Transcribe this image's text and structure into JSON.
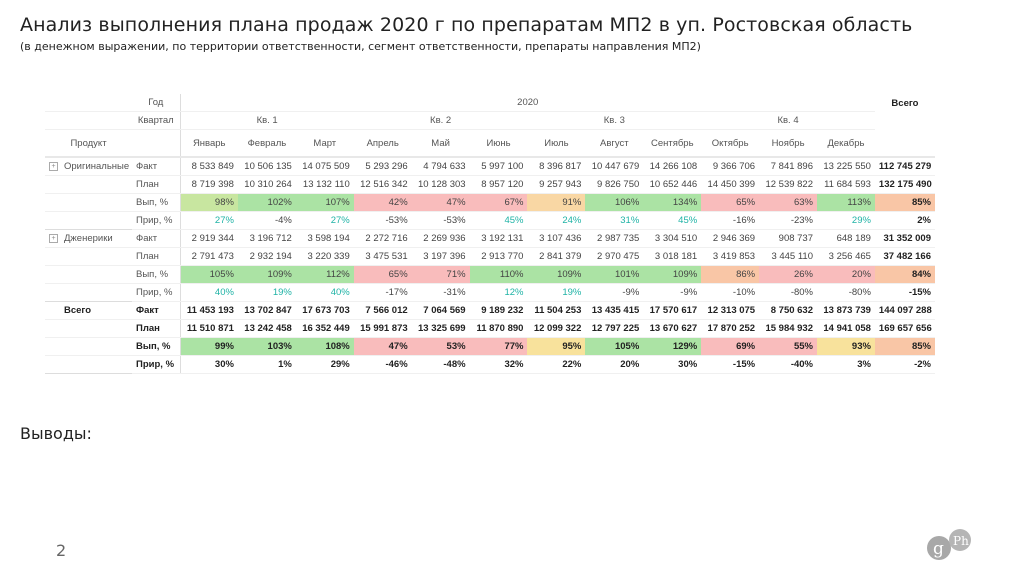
{
  "title": "Анализ выполнения плана продаж  2020 г по препаратам МП2 в уп. Ростовская область",
  "subtitle": "(в денежном выражении, по территории ответственности, сегмент ответственности, препараты направления МП2)",
  "conclusions_label": "Выводы:",
  "page_number": "2",
  "logo_text": "gPh",
  "colors": {
    "green": "#abe3a4",
    "light_green": "#c8e6a0",
    "red": "#f9bcbc",
    "peach": "#f9c6a6",
    "orange": "#f9d7a4",
    "yellow": "#f8e29c",
    "positive_text": "#1fb3a6"
  },
  "table": {
    "year_label": "Год",
    "quarter_label": "Квартал",
    "product_label": "Продукт",
    "year": "2020",
    "total_label": "Всего",
    "quarters": [
      "Кв. 1",
      "Кв. 2",
      "Кв. 3",
      "Кв. 4"
    ],
    "months": [
      "Январь",
      "Февраль",
      "Март",
      "Апрель",
      "Май",
      "Июнь",
      "Июль",
      "Август",
      "Сентябрь",
      "Октябрь",
      "Ноябрь",
      "Декабрь"
    ],
    "groups": [
      {
        "name": "Оригинальные",
        "expandable": true,
        "rows": [
          {
            "metric": "Факт",
            "values": [
              "8 533 849",
              "10 506 135",
              "14 075 509",
              "5 293 296",
              "4 794 633",
              "5 997 100",
              "8 396 817",
              "10 447 679",
              "14 266 108",
              "9 366 706",
              "7 841 896",
              "13 225 550"
            ],
            "total": "112 745 279"
          },
          {
            "metric": "План",
            "values": [
              "8 719 398",
              "10 310 264",
              "13 132 110",
              "12 516 342",
              "10 128 303",
              "8 957 120",
              "9 257 943",
              "9 826 750",
              "10 652 446",
              "14 450 399",
              "12 539 822",
              "11 684 593"
            ],
            "total": "132 175 490"
          },
          {
            "metric": "Вып, %",
            "values": [
              "98%",
              "102%",
              "107%",
              "42%",
              "47%",
              "67%",
              "91%",
              "106%",
              "134%",
              "65%",
              "63%",
              "113%"
            ],
            "total": "85%"
          },
          {
            "metric": "Прир, %",
            "values": [
              "27%",
              "-4%",
              "27%",
              "-53%",
              "-53%",
              "45%",
              "24%",
              "31%",
              "45%",
              "-16%",
              "-23%",
              "29%"
            ],
            "total": "2%"
          }
        ]
      },
      {
        "name": "Дженерики",
        "expandable": true,
        "rows": [
          {
            "metric": "Факт",
            "values": [
              "2 919 344",
              "3 196 712",
              "3 598 194",
              "2 272 716",
              "2 269 936",
              "3 192 131",
              "3 107 436",
              "2 987 735",
              "3 304 510",
              "2 946 369",
              "908 737",
              "648 189"
            ],
            "total": "31 352 009"
          },
          {
            "metric": "План",
            "values": [
              "2 791 473",
              "2 932 194",
              "3 220 339",
              "3 475 531",
              "3 197 396",
              "2 913 770",
              "2 841 379",
              "2 970 475",
              "3 018 181",
              "3 419 853",
              "3 445 110",
              "3 256 465"
            ],
            "total": "37 482 166"
          },
          {
            "metric": "Вып, %",
            "values": [
              "105%",
              "109%",
              "112%",
              "65%",
              "71%",
              "110%",
              "109%",
              "101%",
              "109%",
              "86%",
              "26%",
              "20%"
            ],
            "total": "84%"
          },
          {
            "metric": "Прир, %",
            "values": [
              "40%",
              "19%",
              "40%",
              "-17%",
              "-31%",
              "12%",
              "19%",
              "-9%",
              "-9%",
              "-10%",
              "-80%",
              "-80%"
            ],
            "total": "-15%"
          }
        ]
      },
      {
        "name": "Всего",
        "expandable": false,
        "bold": true,
        "rows": [
          {
            "metric": "Факт",
            "values": [
              "11 453 193",
              "13 702 847",
              "17 673 703",
              "7 566 012",
              "7 064 569",
              "9 189 232",
              "11 504 253",
              "13 435 415",
              "17 570 617",
              "12 313 075",
              "8 750 632",
              "13 873 739"
            ],
            "total": "144 097 288"
          },
          {
            "metric": "План",
            "values": [
              "11 510 871",
              "13 242 458",
              "16 352 449",
              "15 991 873",
              "13 325 699",
              "11 870 890",
              "12 099 322",
              "12 797 225",
              "13 670 627",
              "17 870 252",
              "15 984 932",
              "14 941 058"
            ],
            "total": "169 657 656"
          },
          {
            "metric": "Вып, %",
            "values": [
              "99%",
              "103%",
              "108%",
              "47%",
              "53%",
              "77%",
              "95%",
              "105%",
              "129%",
              "69%",
              "55%",
              "93%"
            ],
            "total": "85%"
          },
          {
            "metric": "Прир, %",
            "values": [
              "30%",
              "1%",
              "29%",
              "-46%",
              "-48%",
              "32%",
              "22%",
              "20%",
              "30%",
              "-15%",
              "-40%",
              "3%"
            ],
            "total": "-2%"
          }
        ]
      }
    ]
  }
}
